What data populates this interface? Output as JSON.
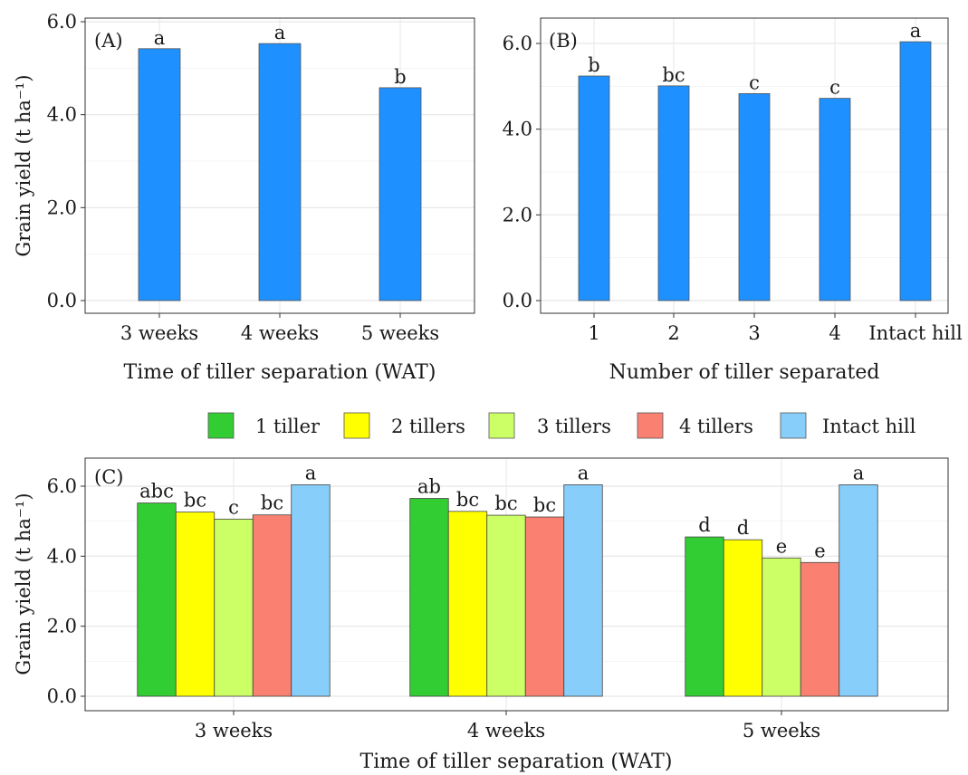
{
  "colors": {
    "bar": "#1e90ff",
    "tiller1": "#32cd32",
    "tiller2": "#ffff00",
    "tiller3": "#ccff66",
    "tiller4": "#fa8072",
    "intact": "#87cefa"
  },
  "chart_data": [
    {
      "id": "A",
      "type": "bar",
      "panel_label": "(A)",
      "xlabel": "Time of tiller separation (WAT)",
      "ylabel": "Grain yield (t ha⁻¹)",
      "categories": [
        "3 weeks",
        "4 weeks",
        "5 weeks"
      ],
      "values": [
        5.42,
        5.53,
        4.58
      ],
      "letters": [
        "a",
        "a",
        "b"
      ],
      "ylim": [
        0,
        6.0
      ],
      "yticks": [
        "0.0",
        "2.0",
        "4.0",
        "6.0"
      ],
      "grid": true
    },
    {
      "id": "B",
      "type": "bar",
      "panel_label": "(B)",
      "xlabel": "Number of tiller separated",
      "ylabel": "",
      "categories": [
        "1",
        "2",
        "3",
        "4",
        "Intact hill"
      ],
      "values": [
        5.24,
        5.01,
        4.83,
        4.72,
        6.04
      ],
      "letters": [
        "b",
        "bc",
        "c",
        "c",
        "a"
      ],
      "ylim": [
        0,
        6.5
      ],
      "yticks": [
        "0.0",
        "2.0",
        "4.0",
        "6.0"
      ],
      "grid": true
    },
    {
      "id": "C",
      "type": "bar",
      "panel_label": "(C)",
      "xlabel": "Time of tiller separation (WAT)",
      "ylabel": "Grain yield (t ha⁻¹)",
      "categories": [
        "3 weeks",
        "4 weeks",
        "5 weeks"
      ],
      "series": [
        {
          "name": "1 tiller",
          "values": [
            5.52,
            5.65,
            4.55
          ],
          "letters": [
            "abc",
            "ab",
            "d"
          ]
        },
        {
          "name": "2 tillers",
          "values": [
            5.26,
            5.28,
            4.47
          ],
          "letters": [
            "bc",
            "bc",
            "d"
          ]
        },
        {
          "name": "3 tillers",
          "values": [
            5.06,
            5.17,
            3.95
          ],
          "letters": [
            "c",
            "bc",
            "e"
          ]
        },
        {
          "name": "4 tillers",
          "values": [
            5.18,
            5.12,
            3.82
          ],
          "letters": [
            "bc",
            "bc",
            "e"
          ]
        },
        {
          "name": "Intact hill",
          "values": [
            6.04,
            6.04,
            6.04
          ],
          "letters": [
            "a",
            "a",
            "a"
          ]
        }
      ],
      "ylim": [
        0,
        6.0
      ],
      "yticks": [
        "0.0",
        "2.0",
        "4.0",
        "6.0"
      ],
      "legend": "top",
      "grid": true
    }
  ]
}
